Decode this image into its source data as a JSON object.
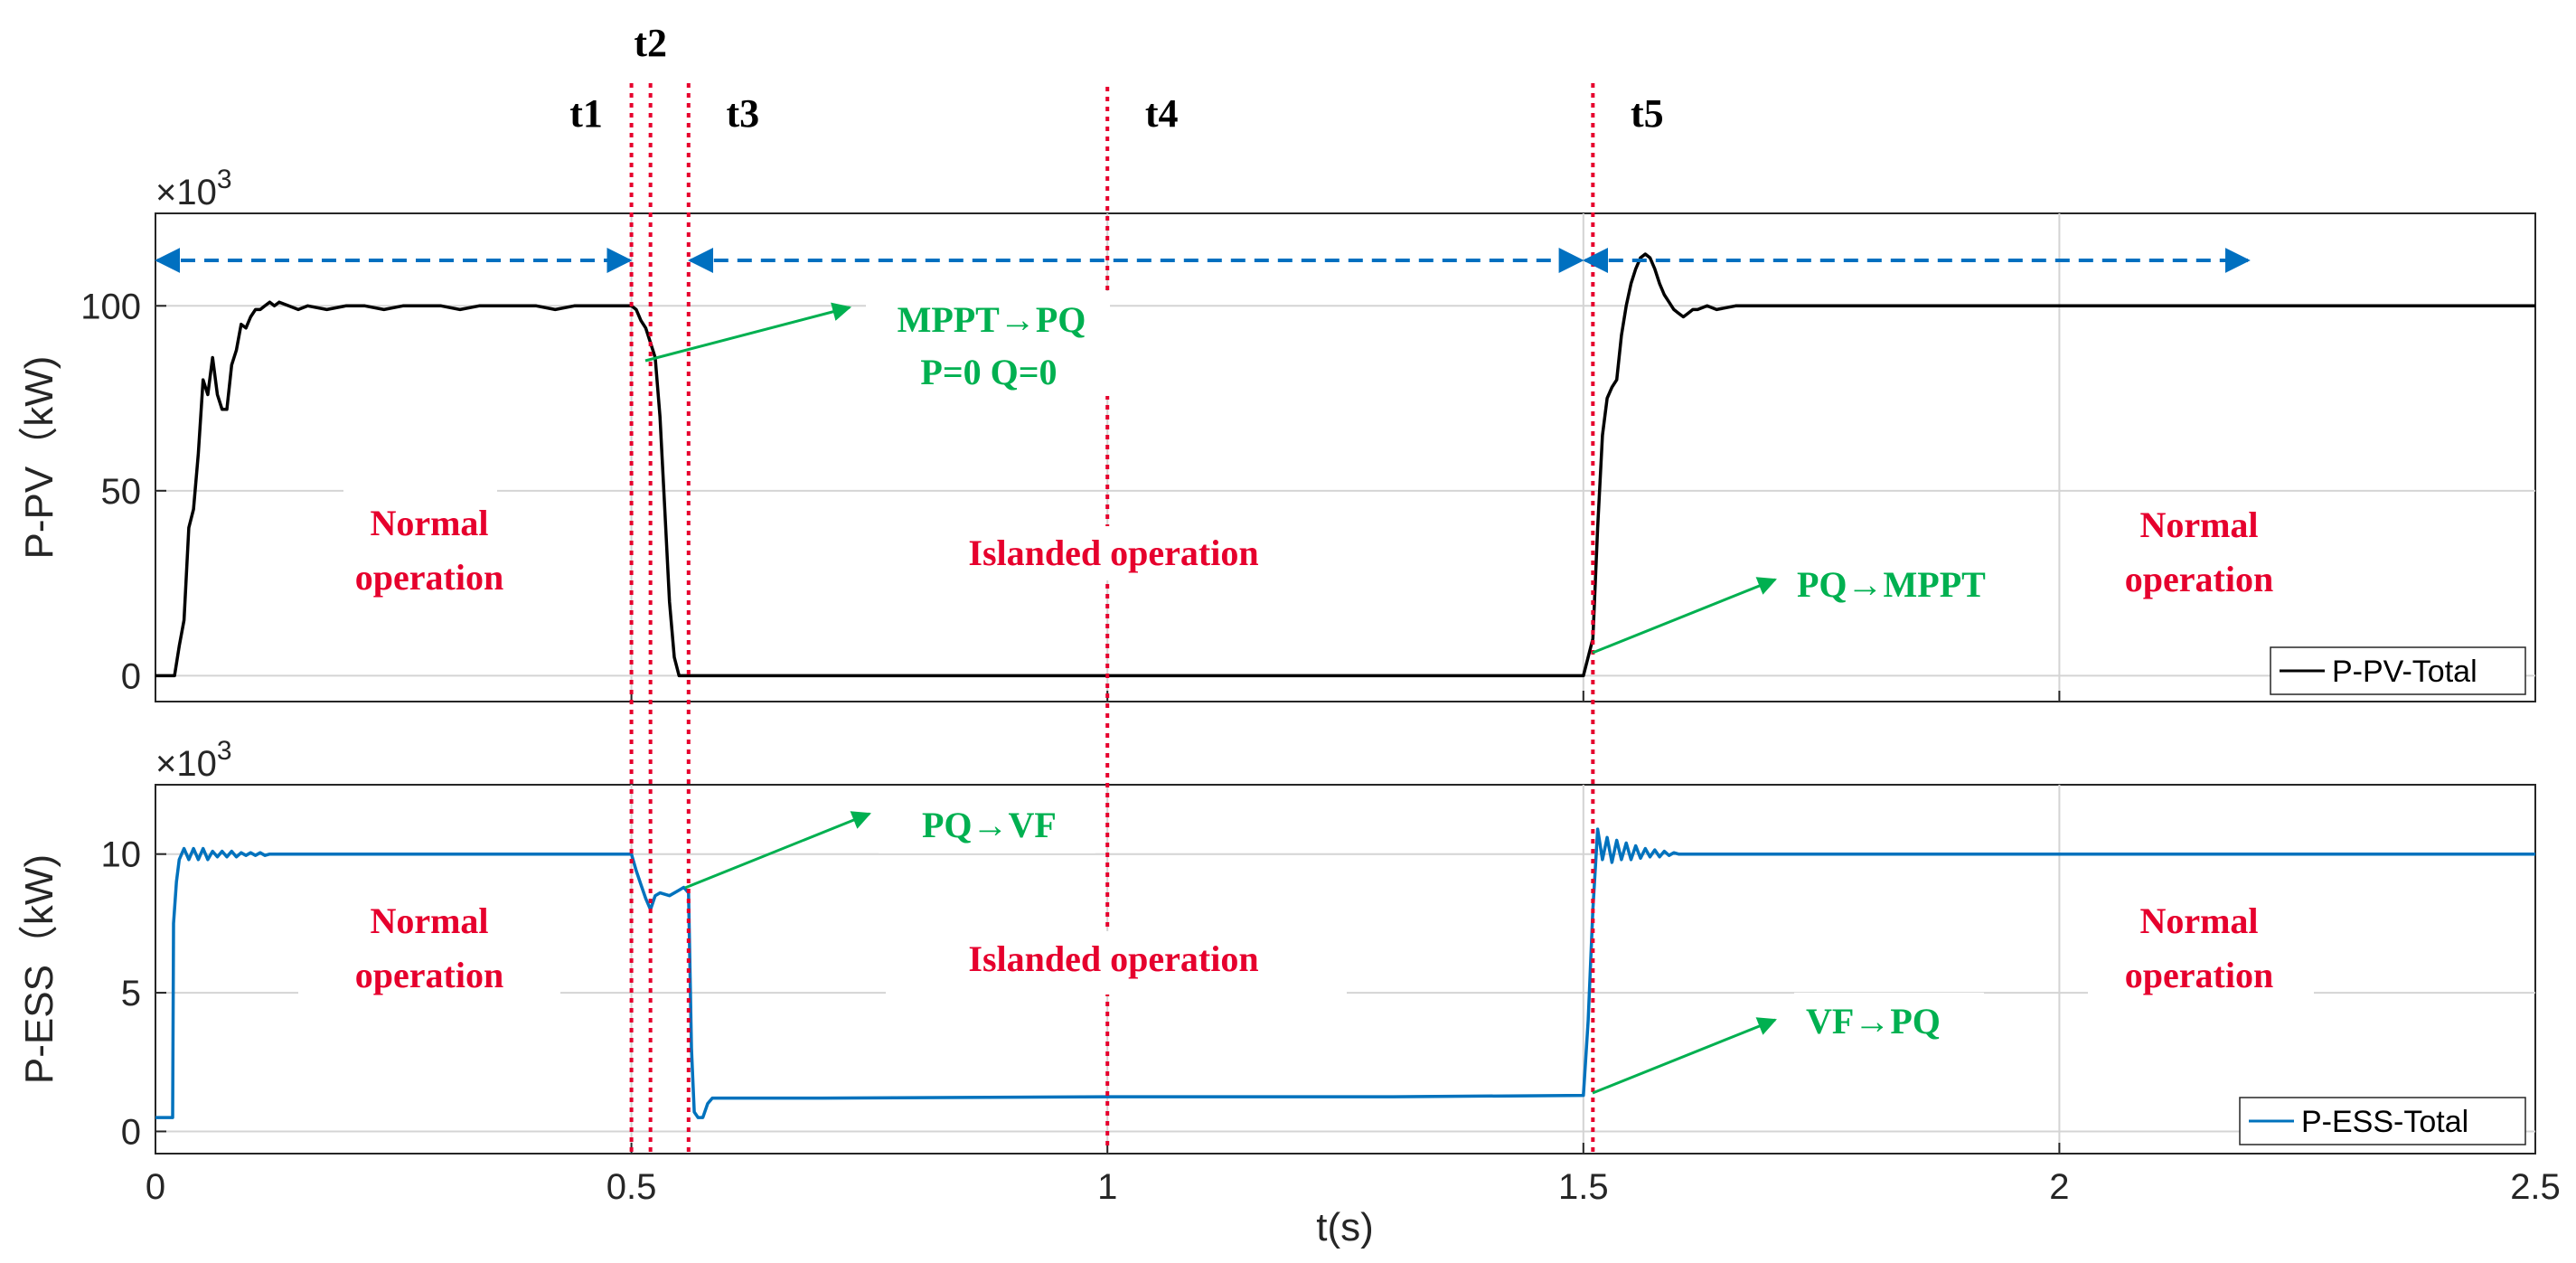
{
  "chart_data": [
    {
      "type": "line",
      "title": "",
      "ylabel": "P-PV（kW)",
      "xlabel": "",
      "exponent_base": "×10",
      "exponent_power": "3",
      "xlim": [
        0,
        2.5
      ],
      "ylim": [
        -7,
        125
      ],
      "yticks": [
        0,
        50,
        100
      ],
      "ytick_labels": [
        "0",
        "50",
        "100"
      ],
      "grid": true,
      "legend": {
        "label": "P-PV-Total",
        "position": "bottom-right"
      },
      "series": [
        {
          "name": "P-PV-Total",
          "color": "#000000",
          "x": [
            0,
            0.02,
            0.025,
            0.03,
            0.035,
            0.04,
            0.045,
            0.05,
            0.055,
            0.06,
            0.065,
            0.07,
            0.075,
            0.08,
            0.085,
            0.09,
            0.095,
            0.1,
            0.105,
            0.11,
            0.115,
            0.12,
            0.125,
            0.13,
            0.14,
            0.15,
            0.16,
            0.18,
            0.2,
            0.22,
            0.24,
            0.26,
            0.28,
            0.3,
            0.32,
            0.34,
            0.36,
            0.38,
            0.4,
            0.42,
            0.44,
            0.46,
            0.48,
            0.5,
            0.505,
            0.51,
            0.515,
            0.52,
            0.525,
            0.53,
            0.535,
            0.54,
            0.545,
            0.55,
            0.6,
            1.0,
            1.4,
            1.5,
            1.51,
            1.515,
            1.52,
            1.525,
            1.53,
            1.535,
            1.54,
            1.545,
            1.55,
            1.555,
            1.56,
            1.565,
            1.57,
            1.575,
            1.58,
            1.585,
            1.59,
            1.595,
            1.6,
            1.605,
            1.61,
            1.615,
            1.62,
            1.63,
            1.64,
            1.66,
            1.7,
            1.8,
            1.9,
            2.0,
            2.1,
            2.2,
            2.3,
            2.4,
            2.5
          ],
          "y": [
            0,
            0,
            8,
            15,
            40,
            45,
            60,
            80,
            76,
            86,
            76,
            72,
            72,
            84,
            88,
            95,
            94,
            97,
            99,
            99,
            100,
            101,
            100,
            101,
            100,
            99,
            100,
            99,
            100,
            100,
            99,
            100,
            100,
            100,
            99,
            100,
            100,
            100,
            100,
            99,
            100,
            100,
            100,
            100,
            99,
            96,
            94,
            90,
            86,
            70,
            45,
            20,
            5,
            0,
            0,
            0,
            0,
            0,
            10,
            40,
            65,
            75,
            78,
            80,
            92,
            100,
            106,
            110,
            113,
            114,
            113,
            110,
            106,
            103,
            101,
            99,
            98,
            97,
            98,
            99,
            99,
            100,
            99,
            100,
            100,
            100,
            100,
            100,
            100,
            100,
            100,
            100,
            100
          ]
        }
      ],
      "annotations": [
        "Normal operation",
        "Islanded operation",
        "Normal operation",
        "MPPT→PQ",
        "P=0 Q=0",
        "PQ→MPPT"
      ]
    },
    {
      "type": "line",
      "title": "",
      "ylabel": "P-ESS（kW)",
      "xlabel": "t(s)",
      "exponent_base": "×10",
      "exponent_power": "3",
      "xlim": [
        0,
        2.5
      ],
      "ylim": [
        -0.8,
        12.5
      ],
      "yticks": [
        0,
        5,
        10
      ],
      "ytick_labels": [
        "0",
        "5",
        "10"
      ],
      "xticks": [
        0,
        0.5,
        1,
        1.5,
        2,
        2.5
      ],
      "xtick_labels": [
        "0",
        "0.5",
        "1",
        "1.5",
        "2",
        "2.5"
      ],
      "grid": true,
      "legend": {
        "label": "P-ESS-Total",
        "position": "bottom-right"
      },
      "series": [
        {
          "name": "P-ESS-Total",
          "color": "#0072bd",
          "x": [
            0,
            0.018,
            0.019,
            0.022,
            0.025,
            0.03,
            0.035,
            0.04,
            0.045,
            0.05,
            0.055,
            0.06,
            0.065,
            0.07,
            0.075,
            0.08,
            0.085,
            0.09,
            0.095,
            0.1,
            0.105,
            0.11,
            0.115,
            0.12,
            0.13,
            0.14,
            0.15,
            0.2,
            0.3,
            0.4,
            0.5,
            0.505,
            0.51,
            0.515,
            0.52,
            0.525,
            0.53,
            0.54,
            0.55,
            0.555,
            0.56,
            0.563,
            0.566,
            0.57,
            0.575,
            0.58,
            0.585,
            0.6,
            0.7,
            1.0,
            1.3,
            1.5,
            1.505,
            1.51,
            1.515,
            1.52,
            1.525,
            1.53,
            1.535,
            1.54,
            1.545,
            1.55,
            1.555,
            1.56,
            1.565,
            1.57,
            1.575,
            1.58,
            1.585,
            1.59,
            1.595,
            1.6,
            1.61,
            1.62,
            1.65,
            1.7,
            2.0,
            2.5
          ],
          "y": [
            0.5,
            0.5,
            7.5,
            9.0,
            9.8,
            10.2,
            9.8,
            10.2,
            9.8,
            10.2,
            9.8,
            10.1,
            9.9,
            10.1,
            9.9,
            10.1,
            9.9,
            10.05,
            9.95,
            10.05,
            9.95,
            10.05,
            9.95,
            10.0,
            10.0,
            10.0,
            10.0,
            10.0,
            10.0,
            10.0,
            10.0,
            9.4,
            8.9,
            8.4,
            8.0,
            8.5,
            8.6,
            8.5,
            8.7,
            8.8,
            8.6,
            3.0,
            0.7,
            0.5,
            0.5,
            1.0,
            1.2,
            1.2,
            1.2,
            1.25,
            1.25,
            1.3,
            4.0,
            8.0,
            10.9,
            9.8,
            10.6,
            9.7,
            10.5,
            9.8,
            10.4,
            9.8,
            10.3,
            9.85,
            10.2,
            9.9,
            10.15,
            9.9,
            10.1,
            9.95,
            10.05,
            10.0,
            10.0,
            10.0,
            10.0,
            10.0,
            10.0,
            10.0
          ]
        }
      ],
      "annotations": [
        "Normal operation",
        "Islanded operation",
        "Normal operation",
        "PQ→VF",
        "VF→PQ"
      ]
    }
  ],
  "events": [
    {
      "label": "t1",
      "t": 0.5
    },
    {
      "label": "t2",
      "t": 0.52
    },
    {
      "label": "t3",
      "t": 0.56
    },
    {
      "label": "t4",
      "t": 1.0
    },
    {
      "label": "t5",
      "t": 1.51
    }
  ],
  "spans": [
    {
      "from": 0,
      "to": 0.5
    },
    {
      "from": 0.56,
      "to": 1.5
    },
    {
      "from": 1.5,
      "to": 2.2
    }
  ],
  "labels": {
    "normal_a": "Normal",
    "normal_b": "operation",
    "islanded": "Islanded operation",
    "mppt_pq": "MPPT→PQ",
    "p0q0": "P=0 Q=0",
    "pq_mppt": "PQ→MPPT",
    "pq_vf": "PQ→VF",
    "vf_pq": "VF→PQ"
  },
  "colors": {
    "event_line": "#e6002d",
    "annotation_red": "#e6002d",
    "annotation_green": "#00b050",
    "span_arrow": "#0070c0",
    "grid": "#d4d4d4",
    "axis": "#262626"
  }
}
